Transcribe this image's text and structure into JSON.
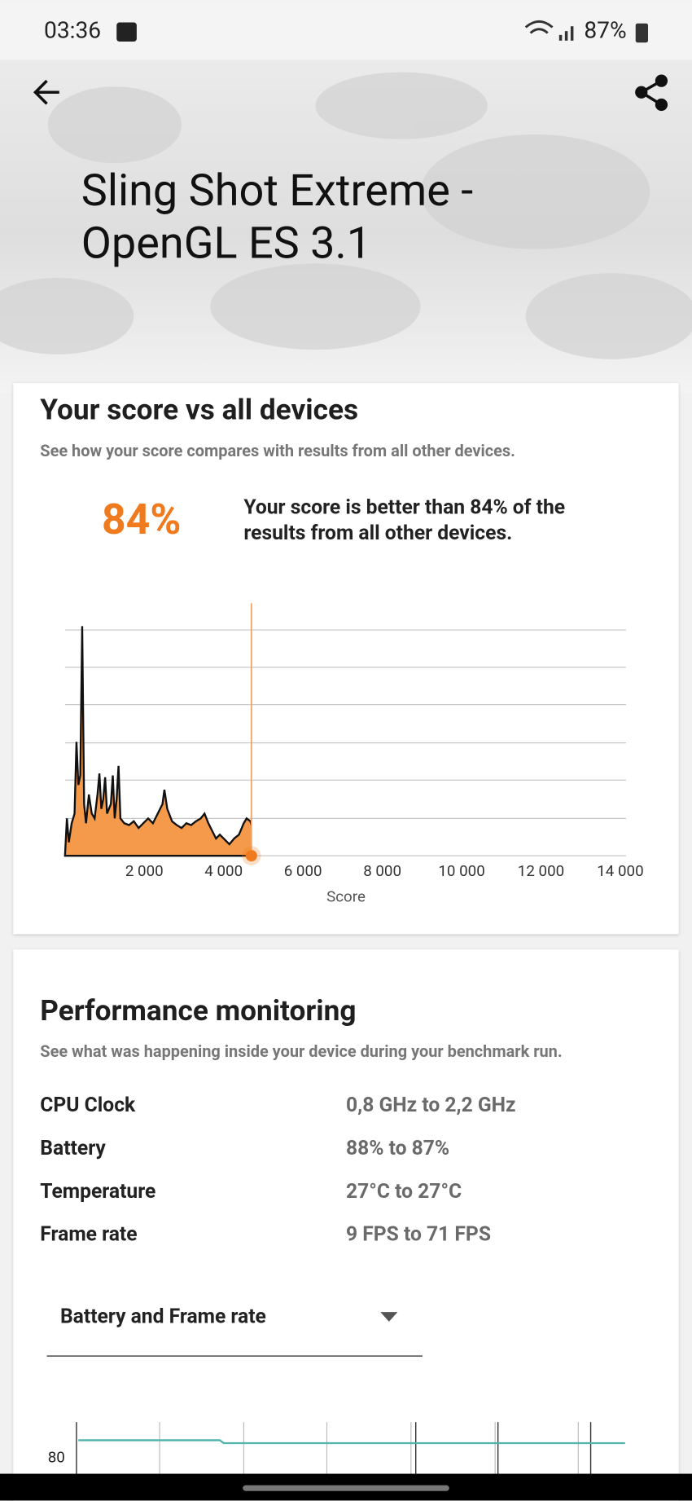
{
  "status_bar": {
    "time": "03:36",
    "battery": "87%"
  },
  "header": {
    "title_lines": [
      "Sling Shot Extreme -",
      "OpenGL ES 3.1"
    ]
  },
  "score_card": {
    "title": "Your score vs all devices",
    "subtitle": "See how your score compares with results from all other devices.",
    "percent": "84%",
    "summary_lines": [
      "Your score is better than 84% of the",
      "results from all other devices."
    ],
    "x_tick_labels": [
      "2 000",
      "4 000",
      "6 000",
      "8 000",
      "10 000",
      "12 000",
      "14 000"
    ],
    "x_axis_label": "Score"
  },
  "performance": {
    "title": "Performance monitoring",
    "subtitle": "See what was happening inside your device during your benchmark run.",
    "rows": [
      [
        "CPU Clock",
        "0,8 GHz to 2,2 GHz"
      ],
      [
        "Battery",
        "88% to 87%"
      ],
      [
        "Temperature",
        "27°C to 27°C"
      ],
      [
        "Frame rate",
        "9 FPS to 71 FPS"
      ]
    ],
    "dropdown": "Battery and Frame rate",
    "chart_y_label": "80"
  }
}
